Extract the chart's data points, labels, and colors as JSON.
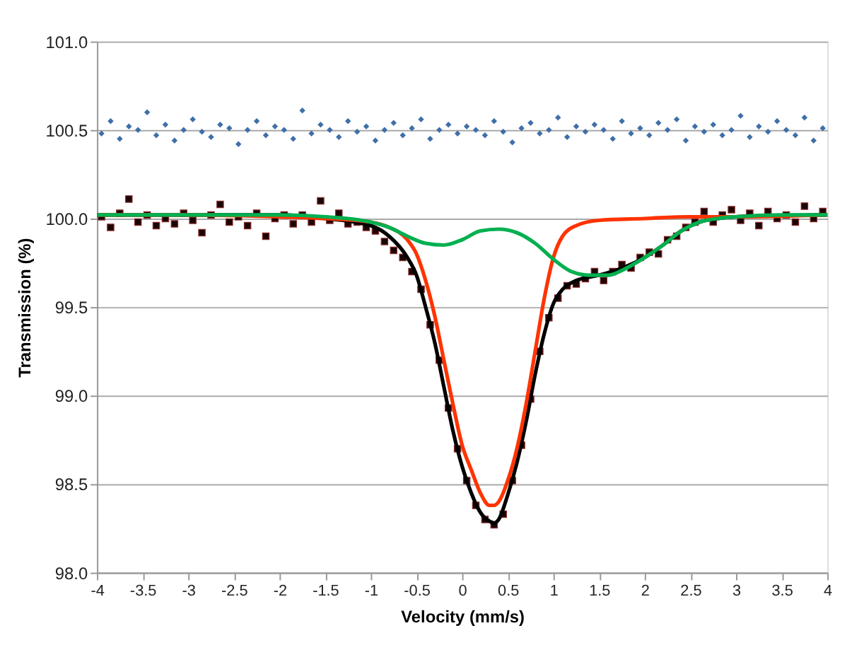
{
  "chart_data": {
    "type": "scatter",
    "xlabel": "Velocity (mm/s)",
    "ylabel": "Transmission (%)",
    "xlim": [
      -4,
      4
    ],
    "xticks": [
      -4,
      -3.5,
      -3,
      -2.5,
      -2,
      -1.5,
      -1,
      -0.5,
      0,
      0.5,
      1,
      1.5,
      2,
      2.5,
      3,
      3.5,
      4
    ],
    "ylim": [
      98,
      101
    ],
    "yticks": [
      {
        "value": 98,
        "label": "98.0"
      },
      {
        "value": 98.5,
        "label": "98.5"
      },
      {
        "value": 99,
        "label": "99.0"
      },
      {
        "value": 99.5,
        "label": "99.5"
      },
      {
        "value": 100,
        "label": "100.0"
      },
      {
        "value": 100.5,
        "label": "100.5"
      },
      {
        "value": 101,
        "label": "101.0"
      }
    ],
    "grid": "y",
    "series": [
      {
        "marker": "diamond",
        "color": "#3f6fa8",
        "x": [
          -3.95,
          -3.85,
          -3.75,
          -3.65,
          -3.55,
          -3.45,
          -3.35,
          -3.25,
          -3.15,
          -3.05,
          -2.95,
          -2.85,
          -2.75,
          -2.65,
          -2.55,
          -2.45,
          -2.35,
          -2.25,
          -2.15,
          -2.05,
          -1.95,
          -1.85,
          -1.75,
          -1.65,
          -1.55,
          -1.45,
          -1.35,
          -1.25,
          -1.15,
          -1.05,
          -0.95,
          -0.85,
          -0.75,
          -0.65,
          -0.55,
          -0.45,
          -0.35,
          -0.25,
          -0.15,
          -0.05,
          0.05,
          0.15,
          0.25,
          0.35,
          0.45,
          0.55,
          0.65,
          0.75,
          0.85,
          0.95,
          1.05,
          1.15,
          1.25,
          1.35,
          1.45,
          1.55,
          1.65,
          1.75,
          1.85,
          1.95,
          2.05,
          2.15,
          2.25,
          2.35,
          2.45,
          2.55,
          2.65,
          2.75,
          2.85,
          2.95,
          3.05,
          3.15,
          3.25,
          3.35,
          3.45,
          3.55,
          3.65,
          3.75,
          3.85,
          3.95
        ],
        "values": [
          100.48,
          100.55,
          100.45,
          100.52,
          100.5,
          100.6,
          100.47,
          100.53,
          100.44,
          100.5,
          100.56,
          100.49,
          100.46,
          100.53,
          100.51,
          100.42,
          100.5,
          100.55,
          100.47,
          100.52,
          100.5,
          100.45,
          100.61,
          100.48,
          100.53,
          100.5,
          100.46,
          100.55,
          100.49,
          100.52,
          100.44,
          100.5,
          100.54,
          100.47,
          100.51,
          100.56,
          100.45,
          100.5,
          100.53,
          100.48,
          100.52,
          100.5,
          100.47,
          100.55,
          100.49,
          100.43,
          100.51,
          100.54,
          100.48,
          100.5,
          100.57,
          100.46,
          100.52,
          100.49,
          100.53,
          100.5,
          100.45,
          100.55,
          100.48,
          100.51,
          100.47,
          100.54,
          100.5,
          100.56,
          100.44,
          100.52,
          100.49,
          100.53,
          100.47,
          100.5,
          100.58,
          100.46,
          100.52,
          100.49,
          100.55,
          100.5,
          100.47,
          100.57,
          100.44,
          100.51
        ]
      },
      {
        "marker": "square",
        "color": "#1a0606",
        "x": [
          -3.95,
          -3.85,
          -3.75,
          -3.65,
          -3.55,
          -3.45,
          -3.35,
          -3.25,
          -3.15,
          -3.05,
          -2.95,
          -2.85,
          -2.75,
          -2.65,
          -2.55,
          -2.45,
          -2.35,
          -2.25,
          -2.15,
          -2.05,
          -1.95,
          -1.85,
          -1.75,
          -1.65,
          -1.55,
          -1.45,
          -1.35,
          -1.25,
          -1.15,
          -1.05,
          -0.95,
          -0.85,
          -0.75,
          -0.65,
          -0.55,
          -0.45,
          -0.35,
          -0.25,
          -0.15,
          -0.05,
          0.05,
          0.15,
          0.25,
          0.35,
          0.45,
          0.55,
          0.65,
          0.75,
          0.85,
          0.95,
          1.05,
          1.15,
          1.25,
          1.35,
          1.45,
          1.55,
          1.65,
          1.75,
          1.85,
          1.95,
          2.05,
          2.15,
          2.25,
          2.35,
          2.45,
          2.55,
          2.65,
          2.75,
          2.85,
          2.95,
          3.05,
          3.15,
          3.25,
          3.35,
          3.45,
          3.55,
          3.65,
          3.75,
          3.85,
          3.95
        ],
        "values": [
          100.01,
          99.95,
          100.03,
          100.11,
          99.98,
          100.02,
          99.96,
          100.0,
          99.97,
          100.03,
          99.99,
          99.92,
          100.02,
          100.08,
          99.98,
          100.01,
          99.96,
          100.03,
          99.9,
          100.0,
          100.02,
          99.97,
          100.02,
          99.98,
          100.1,
          99.99,
          100.03,
          99.97,
          99.98,
          99.95,
          99.93,
          99.87,
          99.82,
          99.78,
          99.7,
          99.6,
          99.4,
          99.2,
          98.93,
          98.7,
          98.52,
          98.38,
          98.3,
          98.27,
          98.33,
          98.52,
          98.72,
          98.98,
          99.25,
          99.44,
          99.55,
          99.62,
          99.63,
          99.66,
          99.7,
          99.65,
          99.7,
          99.74,
          99.72,
          99.78,
          99.81,
          99.8,
          99.88,
          99.9,
          99.95,
          99.98,
          100.04,
          99.98,
          100.02,
          100.05,
          99.99,
          100.03,
          99.96,
          100.04,
          100.0,
          100.02,
          99.98,
          100.07,
          100.0,
          100.04
        ]
      },
      {
        "type": "line",
        "marker": "none",
        "color": "#000000",
        "x": [
          -4,
          -2,
          -1.5,
          -1,
          -0.8,
          -0.6,
          -0.5,
          -0.4,
          -0.3,
          -0.2,
          -0.1,
          0,
          0.1,
          0.2,
          0.3,
          0.35,
          0.4,
          0.5,
          0.6,
          0.7,
          0.8,
          0.9,
          1.0,
          1.1,
          1.25,
          1.5,
          1.75,
          2.0,
          2.2,
          2.4,
          2.6,
          2.8,
          3,
          4
        ],
        "values": [
          100.02,
          100.02,
          100.0,
          99.96,
          99.9,
          99.78,
          99.68,
          99.5,
          99.3,
          99.05,
          98.8,
          98.6,
          98.45,
          98.34,
          98.29,
          98.28,
          98.3,
          98.44,
          98.62,
          98.85,
          99.12,
          99.35,
          99.52,
          99.6,
          99.65,
          99.68,
          99.72,
          99.78,
          99.85,
          99.93,
          99.98,
          100.0,
          100.01,
          100.02
        ]
      },
      {
        "type": "line",
        "marker": "none",
        "color": "#ff3300",
        "x": [
          -4,
          -3,
          -2,
          -1.5,
          -1,
          -0.8,
          -0.6,
          -0.5,
          -0.4,
          -0.3,
          -0.2,
          -0.1,
          0,
          0.1,
          0.2,
          0.3,
          0.35,
          0.4,
          0.5,
          0.6,
          0.7,
          0.8,
          0.9,
          1.0,
          1.1,
          1.25,
          1.5,
          2,
          2.5,
          3,
          4
        ],
        "values": [
          100.02,
          100.02,
          100.01,
          100.0,
          99.98,
          99.95,
          99.88,
          99.8,
          99.65,
          99.45,
          99.2,
          98.95,
          98.72,
          98.58,
          98.45,
          98.38,
          98.38,
          98.4,
          98.52,
          98.7,
          98.95,
          99.25,
          99.55,
          99.78,
          99.9,
          99.96,
          99.99,
          100.0,
          100.01,
          100.01,
          100.02
        ]
      },
      {
        "type": "line",
        "marker": "none",
        "color": "#00b050",
        "x": [
          -4,
          -2,
          -1.5,
          -1,
          -0.8,
          -0.6,
          -0.4,
          -0.2,
          0,
          0.2,
          0.4,
          0.6,
          0.8,
          1.0,
          1.2,
          1.4,
          1.6,
          1.8,
          2.0,
          2.2,
          2.4,
          2.6,
          2.8,
          3,
          3.5,
          4
        ],
        "values": [
          100.02,
          100.02,
          100.01,
          99.98,
          99.95,
          99.9,
          99.86,
          99.85,
          99.88,
          99.93,
          99.94,
          99.92,
          99.86,
          99.77,
          99.7,
          99.68,
          99.68,
          99.72,
          99.78,
          99.85,
          99.93,
          99.98,
          100.0,
          100.01,
          100.02,
          100.02
        ]
      }
    ]
  }
}
